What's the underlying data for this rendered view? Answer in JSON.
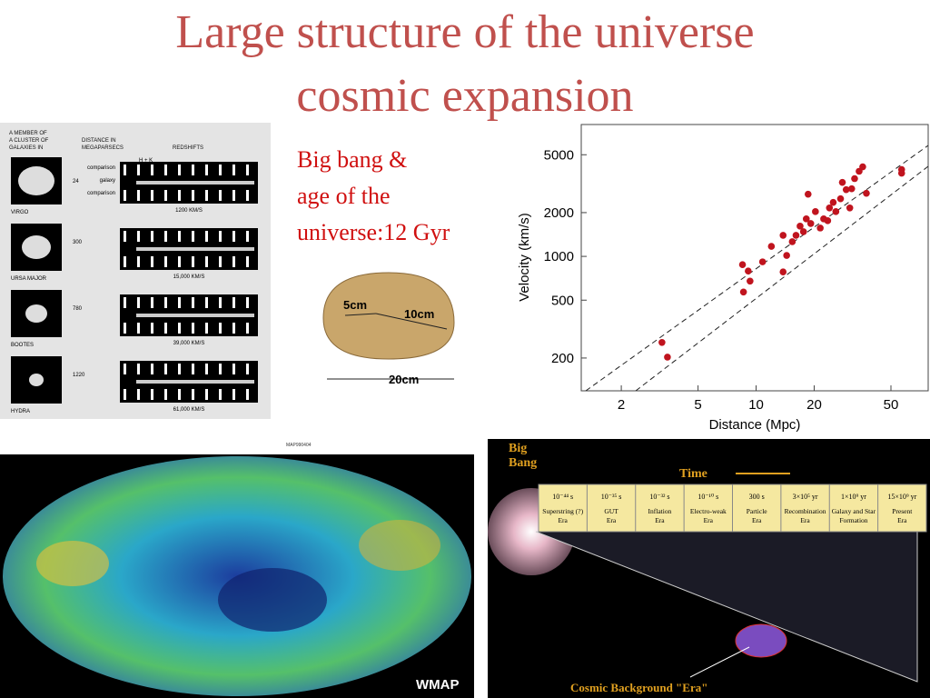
{
  "slide": {
    "title_lines": [
      "Large structure of the universe",
      "cosmic expansion"
    ],
    "note_lines": [
      "Big bang &",
      "age of the",
      "universe:12 Gyr"
    ]
  },
  "spectra_figure": {
    "headers": [
      "A MEMBER OF",
      "A CLUSTER OF",
      "GALAXIES IN",
      "DISTANCE IN",
      "MEGAPARSECS",
      "REDSHIFTS"
    ],
    "line_labels": [
      "comparison",
      "galaxy",
      "comparison"
    ],
    "hk_label": "H + K",
    "rows": [
      {
        "galaxy": "VIRGO",
        "distance": "24",
        "redshift": "1200 KM/S"
      },
      {
        "galaxy": "URSA MAJOR",
        "distance": "300",
        "redshift": "15,000 KM/S"
      },
      {
        "galaxy": "BOOTES",
        "distance": "780",
        "redshift": "39,000 KM/S"
      },
      {
        "galaxy": "HYDRA",
        "distance": "1220",
        "redshift": "61,000 KM/S"
      }
    ]
  },
  "balloon_figure": {
    "labels": [
      "5cm",
      "10cm",
      "20cm"
    ]
  },
  "hubble_chart": {
    "type": "scatter",
    "xlabel": "Distance (Mpc)",
    "ylabel": "Velocity (km/s)",
    "xscale": "log",
    "yscale": "log",
    "color": "#c0141e",
    "xlim": [
      1.24,
      78
    ],
    "ylim": [
      119,
      8070
    ],
    "xticks": [
      2,
      5,
      10,
      20,
      50
    ],
    "yticks": [
      200,
      500,
      1000,
      2000,
      5000
    ],
    "x": [
      3.25,
      3.47,
      8.5,
      9.1,
      8.6,
      9.3,
      10.8,
      12.0,
      13.8,
      13.8,
      14.4,
      15.4,
      16.1,
      16.9,
      17.6,
      18.2,
      19.2,
      18.6,
      20.3,
      21.5,
      22.4,
      23.5,
      24.0,
      25.1,
      25.9,
      27.4,
      28.0,
      29.3,
      31.3,
      30.6,
      32.4,
      34.2,
      35.7,
      37.3,
      56.8,
      56.8
    ],
    "values": [
      256,
      203,
      877,
      793,
      569,
      676,
      917,
      1172,
      1396,
      782,
      1015,
      1261,
      1396,
      1614,
      1479,
      1811,
      1683,
      2678,
      2032,
      1567,
      1811,
      1759,
      2153,
      2350,
      2032,
      2490,
      3228,
      2877,
      2918,
      2153,
      3427,
      3846,
      4130,
      2716,
      3957,
      3733
    ]
  },
  "wmap_figure": {
    "code": "MAP990404",
    "label": "WMAP"
  },
  "timeline_figure": {
    "big_bang": [
      "Big",
      "Bang"
    ],
    "time_label": "Time",
    "times": [
      "10⁻⁴⁴ s",
      "10⁻³⁵ s",
      "10⁻³² s",
      "10⁻¹⁰ s",
      "300 s",
      "3×10⁵ yr",
      "1×10⁹ yr",
      "15×10⁹ yr"
    ],
    "eras": [
      [
        "Superstring (?)",
        "Era"
      ],
      [
        "GUT",
        "Era"
      ],
      [
        "Inflation",
        "Era"
      ],
      [
        "Electro-weak",
        "Era"
      ],
      [
        "Particle",
        "Era"
      ],
      [
        "Recombination",
        "Era"
      ],
      [
        "Galaxy and Star",
        "Formation"
      ],
      [
        "Present",
        "Era"
      ]
    ],
    "cmb_label": "Cosmic Background \"Era\""
  }
}
